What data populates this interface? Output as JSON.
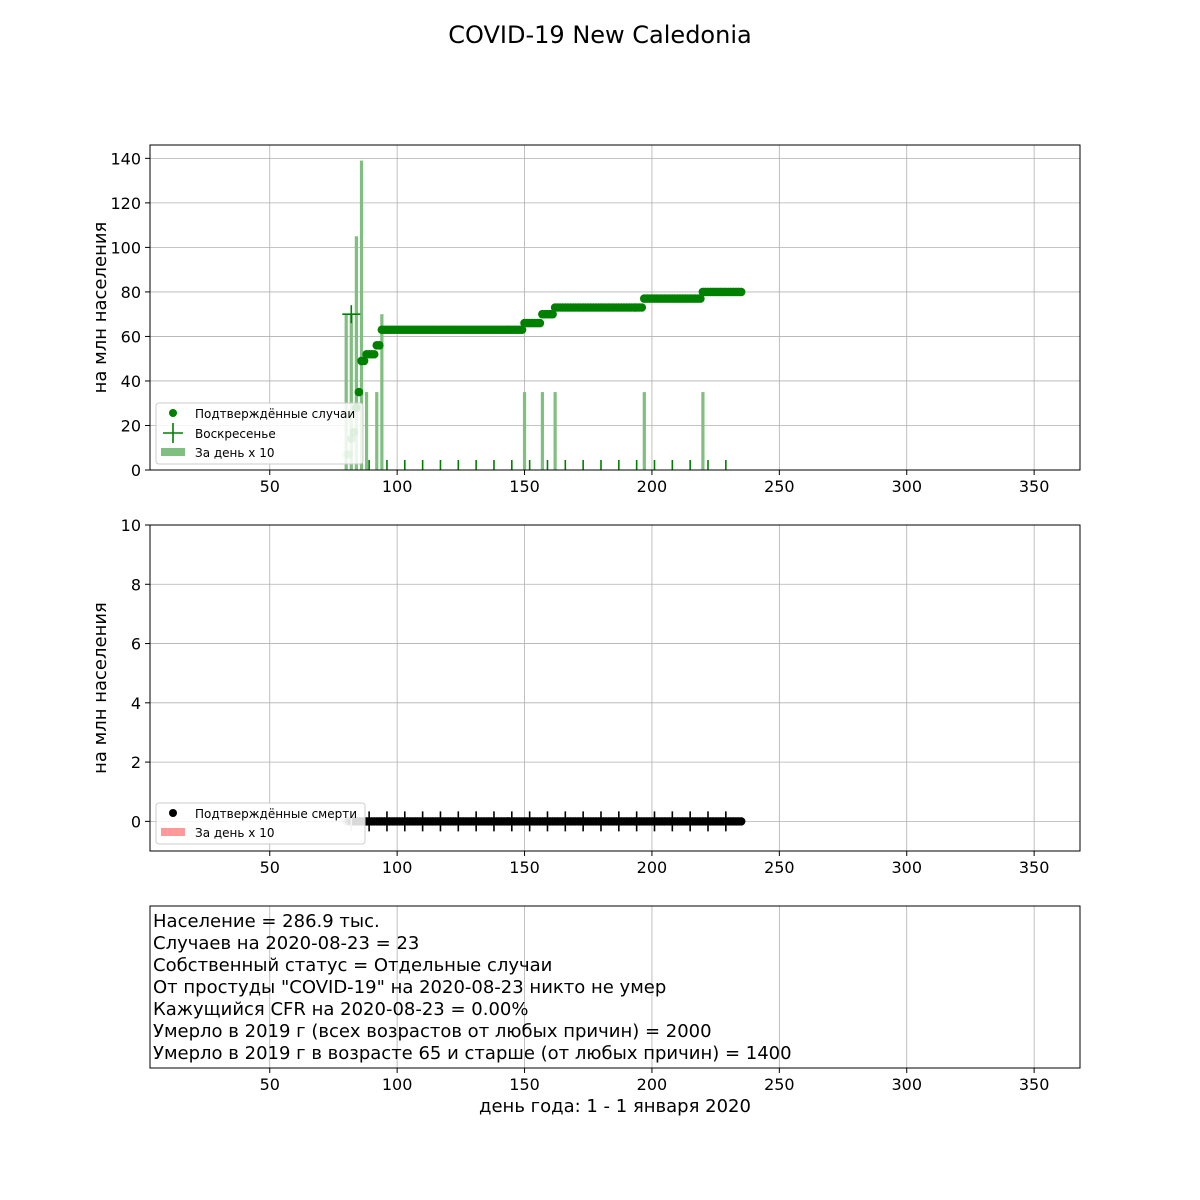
{
  "title": "COVID-19 New Caledonia",
  "colors": {
    "cases": "#008000",
    "cases_bar": "#7fbf7f",
    "deaths": "#000000",
    "deaths_bar": "#ff9999",
    "grid": "#b0b0b0"
  },
  "chart_data": [
    {
      "type": "line",
      "panel": "cases",
      "ylabel": "на млн населения",
      "xlim": [
        3,
        368
      ],
      "ylim": [
        0,
        146
      ],
      "xticks": [
        50,
        100,
        150,
        200,
        250,
        300,
        350
      ],
      "yticks": [
        0,
        20,
        40,
        60,
        80,
        100,
        120,
        140
      ],
      "grid": true,
      "legend_position": "lower-left",
      "legend": [
        "Подтверждённые случаи",
        "Воскресенье",
        "За день x 10"
      ],
      "series": [
        {
          "name": "Подтверждённые случаи",
          "kind": "scatter",
          "points": [
            [
              80,
              7
            ],
            [
              81,
              7
            ],
            [
              82,
              14
            ],
            [
              83,
              17
            ],
            [
              84,
              28
            ],
            [
              85,
              35
            ],
            [
              86,
              49
            ],
            [
              87,
              49
            ],
            [
              88,
              52
            ],
            [
              89,
              52
            ],
            [
              90,
              52
            ],
            [
              91,
              52
            ],
            [
              92,
              56
            ],
            [
              93,
              56
            ],
            [
              94,
              63
            ],
            [
              95,
              63
            ],
            [
              96,
              63
            ],
            [
              97,
              63
            ],
            [
              98,
              63
            ],
            [
              99,
              63
            ],
            [
              100,
              63
            ],
            [
              101,
              63
            ],
            [
              102,
              63
            ],
            [
              103,
              63
            ],
            [
              104,
              63
            ],
            [
              105,
              63
            ],
            [
              106,
              63
            ],
            [
              107,
              63
            ],
            [
              108,
              63
            ],
            [
              109,
              63
            ],
            [
              110,
              63
            ],
            [
              111,
              63
            ],
            [
              112,
              63
            ],
            [
              113,
              63
            ],
            [
              114,
              63
            ],
            [
              115,
              63
            ],
            [
              116,
              63
            ],
            [
              117,
              63
            ],
            [
              118,
              63
            ],
            [
              119,
              63
            ],
            [
              120,
              63
            ],
            [
              121,
              63
            ],
            [
              122,
              63
            ],
            [
              123,
              63
            ],
            [
              124,
              63
            ],
            [
              125,
              63
            ],
            [
              126,
              63
            ],
            [
              127,
              63
            ],
            [
              128,
              63
            ],
            [
              129,
              63
            ],
            [
              130,
              63
            ],
            [
              131,
              63
            ],
            [
              132,
              63
            ],
            [
              133,
              63
            ],
            [
              134,
              63
            ],
            [
              135,
              63
            ],
            [
              136,
              63
            ],
            [
              137,
              63
            ],
            [
              138,
              63
            ],
            [
              139,
              63
            ],
            [
              140,
              63
            ],
            [
              141,
              63
            ],
            [
              142,
              63
            ],
            [
              143,
              63
            ],
            [
              144,
              63
            ],
            [
              145,
              63
            ],
            [
              146,
              63
            ],
            [
              147,
              63
            ],
            [
              148,
              63
            ],
            [
              149,
              63
            ],
            [
              150,
              66
            ],
            [
              151,
              66
            ],
            [
              152,
              66
            ],
            [
              153,
              66
            ],
            [
              154,
              66
            ],
            [
              155,
              66
            ],
            [
              156,
              66
            ],
            [
              157,
              70
            ],
            [
              158,
              70
            ],
            [
              159,
              70
            ],
            [
              160,
              70
            ],
            [
              161,
              70
            ],
            [
              162,
              73
            ],
            [
              163,
              73
            ],
            [
              164,
              73
            ],
            [
              165,
              73
            ],
            [
              166,
              73
            ],
            [
              167,
              73
            ],
            [
              168,
              73
            ],
            [
              169,
              73
            ],
            [
              170,
              73
            ],
            [
              171,
              73
            ],
            [
              172,
              73
            ],
            [
              173,
              73
            ],
            [
              174,
              73
            ],
            [
              175,
              73
            ],
            [
              176,
              73
            ],
            [
              177,
              73
            ],
            [
              178,
              73
            ],
            [
              179,
              73
            ],
            [
              180,
              73
            ],
            [
              181,
              73
            ],
            [
              182,
              73
            ],
            [
              183,
              73
            ],
            [
              184,
              73
            ],
            [
              185,
              73
            ],
            [
              186,
              73
            ],
            [
              187,
              73
            ],
            [
              188,
              73
            ],
            [
              189,
              73
            ],
            [
              190,
              73
            ],
            [
              191,
              73
            ],
            [
              192,
              73
            ],
            [
              193,
              73
            ],
            [
              194,
              73
            ],
            [
              195,
              73
            ],
            [
              196,
              73
            ],
            [
              197,
              77
            ],
            [
              198,
              77
            ],
            [
              199,
              77
            ],
            [
              200,
              77
            ],
            [
              201,
              77
            ],
            [
              202,
              77
            ],
            [
              203,
              77
            ],
            [
              204,
              77
            ],
            [
              205,
              77
            ],
            [
              206,
              77
            ],
            [
              207,
              77
            ],
            [
              208,
              77
            ],
            [
              209,
              77
            ],
            [
              210,
              77
            ],
            [
              211,
              77
            ],
            [
              212,
              77
            ],
            [
              213,
              77
            ],
            [
              214,
              77
            ],
            [
              215,
              77
            ],
            [
              216,
              77
            ],
            [
              217,
              77
            ],
            [
              218,
              77
            ],
            [
              219,
              77
            ],
            [
              220,
              80
            ],
            [
              221,
              80
            ],
            [
              222,
              80
            ],
            [
              223,
              80
            ],
            [
              224,
              80
            ],
            [
              225,
              80
            ],
            [
              226,
              80
            ],
            [
              227,
              80
            ],
            [
              228,
              80
            ],
            [
              229,
              80
            ],
            [
              230,
              80
            ],
            [
              231,
              80
            ],
            [
              232,
              80
            ],
            [
              233,
              80
            ],
            [
              234,
              80
            ],
            [
              235,
              80
            ]
          ]
        },
        {
          "name": "Воскресенье",
          "kind": "marker-plus",
          "points": [
            [
              82,
              70
            ],
            [
              89,
              2
            ],
            [
              96,
              2
            ],
            [
              103,
              2
            ],
            [
              110,
              2
            ],
            [
              117,
              2
            ],
            [
              124,
              2
            ],
            [
              131,
              2
            ],
            [
              138,
              2
            ],
            [
              145,
              2
            ],
            [
              152,
              2
            ],
            [
              159,
              2
            ],
            [
              166,
              2
            ],
            [
              173,
              2
            ],
            [
              180,
              2
            ],
            [
              187,
              2
            ],
            [
              194,
              2
            ],
            [
              201,
              2
            ],
            [
              208,
              2
            ],
            [
              215,
              2
            ],
            [
              222,
              2
            ],
            [
              229,
              2
            ]
          ]
        },
        {
          "name": "За день x 10",
          "kind": "bar",
          "points": [
            [
              80,
              70
            ],
            [
              82,
              70
            ],
            [
              84,
              105
            ],
            [
              86,
              139
            ],
            [
              88,
              35
            ],
            [
              92,
              35
            ],
            [
              94,
              70
            ],
            [
              150,
              35
            ],
            [
              157,
              35
            ],
            [
              162,
              35
            ],
            [
              197,
              35
            ],
            [
              220,
              35
            ]
          ]
        }
      ]
    },
    {
      "type": "line",
      "panel": "deaths",
      "ylabel": "на млн населения",
      "xlim": [
        3,
        368
      ],
      "ylim": [
        -1,
        10
      ],
      "xticks": [
        50,
        100,
        150,
        200,
        250,
        300,
        350
      ],
      "yticks": [
        0,
        2,
        4,
        6,
        8,
        10
      ],
      "grid": true,
      "legend_position": "lower-left",
      "legend": [
        "Подтверждённые смерти",
        "За день x 10"
      ],
      "series": [
        {
          "name": "Подтверждённые смерти",
          "kind": "scatter",
          "x_range": [
            80,
            235
          ],
          "y": 0
        },
        {
          "kind": "marker-plus",
          "points": [
            [
              82,
              0
            ],
            [
              89,
              0
            ],
            [
              96,
              0
            ],
            [
              103,
              0
            ],
            [
              110,
              0
            ],
            [
              117,
              0
            ],
            [
              124,
              0
            ],
            [
              131,
              0
            ],
            [
              138,
              0
            ],
            [
              145,
              0
            ],
            [
              152,
              0
            ],
            [
              159,
              0
            ],
            [
              166,
              0
            ],
            [
              173,
              0
            ],
            [
              180,
              0
            ],
            [
              187,
              0
            ],
            [
              194,
              0
            ],
            [
              201,
              0
            ],
            [
              208,
              0
            ],
            [
              215,
              0
            ],
            [
              222,
              0
            ],
            [
              229,
              0
            ]
          ]
        },
        {
          "name": "За день x 10",
          "kind": "bar",
          "points": []
        }
      ]
    }
  ],
  "info": {
    "lines": [
      "Население = 286.9 тыс.",
      "Случаев на 2020-08-23 = 23",
      "Собственный статус = Отдельные случаи",
      "От простуды \"COVID-19\" на 2020-08-23 никто не умер",
      "Кажущийся CFR на 2020-08-23 = 0.00%",
      "Умерло в 2019 г (всех возрастов от любых причин) = 2000",
      "Умерло в 2019 г в возрасте 65 и старше (от любых причин) = 1400"
    ],
    "xticks": [
      50,
      100,
      150,
      200,
      250,
      300,
      350
    ],
    "xlabel": "день года: 1 - 1 января 2020"
  }
}
